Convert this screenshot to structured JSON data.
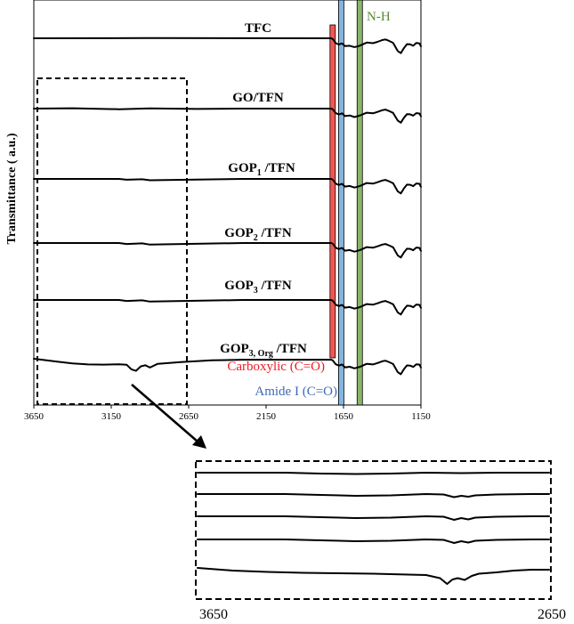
{
  "chart_data": [
    {
      "type": "line",
      "title": "",
      "xlabel": "",
      "ylabel": "Transmittance ( a.u.)",
      "xlim": [
        3650,
        1150
      ],
      "x_reversed": true,
      "x_ticks": [
        "3650",
        "3150",
        "2650",
        "2150",
        "1650",
        "1150"
      ],
      "grid": false,
      "series": [
        {
          "name": "TFC",
          "label_main": "TFC",
          "label_sub": "",
          "label_tail": "",
          "x": [
            3650,
            2900,
            1730,
            1720,
            1700,
            1680,
            1660,
            1640,
            1610,
            1580,
            1560,
            1540,
            1500,
            1460,
            1430,
            1400,
            1380,
            1360,
            1330,
            1300,
            1280,
            1260,
            1240,
            1220,
            1200,
            1180,
            1160,
            1150
          ],
          "y": [
            0,
            0.1,
            0,
            -0.3,
            -2.5,
            -3.2,
            -2.6,
            -4,
            -3.8,
            -4.5,
            -4.2,
            -3.6,
            -2.2,
            -2.5,
            -1.8,
            -0.9,
            -0.6,
            -1.2,
            -2.3,
            -6.5,
            -7.6,
            -5,
            -3,
            -3.1,
            -3.8,
            -2.4,
            -2.6,
            -4.1
          ]
        },
        {
          "name": "GO/TFN",
          "label_main": "GO/TFN",
          "label_sub": "",
          "label_tail": "",
          "x": [
            3650,
            3400,
            3100,
            2900,
            2600,
            2300,
            1730,
            1720,
            1700,
            1680,
            1660,
            1640,
            1610,
            1580,
            1560,
            1540,
            1500,
            1460,
            1430,
            1400,
            1380,
            1360,
            1330,
            1300,
            1280,
            1260,
            1240,
            1220,
            1200,
            1180,
            1160,
            1150
          ],
          "y": [
            0,
            0.2,
            -0.3,
            0.1,
            -0.2,
            0,
            0,
            -0.3,
            -2.3,
            -3,
            -2.4,
            -3.8,
            -3.5,
            -4.3,
            -3.9,
            -3.4,
            -2.1,
            -2.4,
            -1.7,
            -0.8,
            -0.5,
            -1.1,
            -2.2,
            -6.1,
            -7.2,
            -4.7,
            -2.8,
            -2.9,
            -3.6,
            -2.3,
            -2.5,
            -3.9
          ]
        },
        {
          "name": "GOP1/TFN",
          "label_main": "GOP",
          "label_sub": "1",
          "label_tail": " /TFN",
          "x": [
            3650,
            3300,
            3100,
            3050,
            2950,
            2900,
            2300,
            1730,
            1720,
            1700,
            1680,
            1660,
            1640,
            1610,
            1580,
            1560,
            1540,
            1500,
            1460,
            1430,
            1400,
            1380,
            1360,
            1330,
            1300,
            1280,
            1260,
            1240,
            1220,
            1200,
            1180,
            1160,
            1150
          ],
          "y": [
            0,
            0,
            0,
            -0.4,
            -0.2,
            -0.7,
            0,
            0,
            -0.3,
            -2.4,
            -3.1,
            -2.5,
            -3.9,
            -3.6,
            -4.4,
            -4,
            -3.5,
            -2.1,
            -2.4,
            -1.7,
            -0.8,
            -0.5,
            -1.1,
            -2.2,
            -6.3,
            -7.4,
            -4.8,
            -2.9,
            -3,
            -3.7,
            -2.3,
            -2.5,
            -4
          ]
        },
        {
          "name": "GOP2/TFN",
          "label_main": "GOP",
          "label_sub": "2",
          "label_tail": " /TFN",
          "x": [
            3650,
            3300,
            3100,
            3050,
            2950,
            2900,
            2300,
            1730,
            1720,
            1700,
            1680,
            1660,
            1640,
            1610,
            1580,
            1560,
            1540,
            1500,
            1460,
            1430,
            1400,
            1380,
            1360,
            1330,
            1300,
            1280,
            1260,
            1240,
            1220,
            1200,
            1180,
            1160,
            1150
          ],
          "y": [
            0,
            0,
            0,
            -0.5,
            -0.2,
            -0.8,
            0,
            0,
            -0.3,
            -2.4,
            -3.1,
            -2.5,
            -3.9,
            -3.6,
            -4.4,
            -4,
            -3.5,
            -2.1,
            -2.4,
            -1.7,
            -0.8,
            -0.5,
            -1.1,
            -2.2,
            -6.3,
            -7.4,
            -4.8,
            -2.9,
            -3,
            -3.7,
            -2.3,
            -2.5,
            -4
          ]
        },
        {
          "name": "GOP3/TFN",
          "label_main": "GOP",
          "label_sub": "3",
          "label_tail": " /TFN",
          "x": [
            3650,
            3300,
            3100,
            3050,
            2950,
            2900,
            2300,
            1730,
            1720,
            1700,
            1680,
            1660,
            1640,
            1610,
            1580,
            1560,
            1540,
            1500,
            1460,
            1430,
            1400,
            1380,
            1360,
            1330,
            1300,
            1280,
            1260,
            1240,
            1220,
            1200,
            1180,
            1160,
            1150
          ],
          "y": [
            0,
            0,
            0,
            -0.5,
            -0.2,
            -0.8,
            0,
            0,
            -0.3,
            -2.4,
            -3.1,
            -2.5,
            -3.9,
            -3.6,
            -4.4,
            -4,
            -3.5,
            -2.1,
            -2.4,
            -1.7,
            -0.8,
            -0.5,
            -1.1,
            -2.2,
            -6.3,
            -7.4,
            -4.8,
            -2.9,
            -3,
            -3.7,
            -2.3,
            -2.5,
            -4
          ]
        },
        {
          "name": "GOP3, Org/TFN",
          "label_main": "GOP",
          "label_sub": "3, Org",
          "label_tail": " /TFN",
          "x": [
            3650,
            3500,
            3400,
            3300,
            3200,
            3100,
            3050,
            3020,
            2990,
            2960,
            2930,
            2900,
            2850,
            2700,
            2500,
            2300,
            1730,
            1720,
            1700,
            1680,
            1660,
            1640,
            1610,
            1580,
            1560,
            1540,
            1500,
            1460,
            1430,
            1400,
            1380,
            1360,
            1330,
            1300,
            1280,
            1260,
            1240,
            1220,
            1200,
            1180,
            1160,
            1150
          ],
          "y": [
            0,
            -1.5,
            -2.4,
            -2.9,
            -3,
            -2.8,
            -3.1,
            -5.4,
            -6.2,
            -3.9,
            -3.3,
            -4.5,
            -2.6,
            -1.7,
            -0.8,
            -0.5,
            -0.5,
            -0.8,
            -2.8,
            -3.5,
            -2.9,
            -4.4,
            -4.1,
            -4.9,
            -4.5,
            -4,
            -2.6,
            -2.9,
            -2.2,
            -1.3,
            -1,
            -1.6,
            -2.7,
            -6.8,
            -7.9,
            -5.3,
            -3.4,
            -3.5,
            -4.2,
            -2.8,
            -3,
            -4.5
          ]
        }
      ],
      "bands": [
        {
          "label": "Carboxylic (C=O)",
          "color": "#ee1c25",
          "x": 1720
        },
        {
          "label": "Amide I (C=O)",
          "color": "#3e6ab3",
          "x": 1665
        },
        {
          "label": "N-H",
          "color": "#5a8a3a",
          "x": 1545
        }
      ],
      "colors": {
        "line": "#000000",
        "label_carboxylic": "#ee1c25",
        "label_amide": "#3e6ab3",
        "label_nh": "#5a8a3a",
        "band_red": "#ee3a35",
        "band_blue": "#6fa8dc",
        "band_green": "#76a84f"
      }
    },
    {
      "type": "line",
      "title": "",
      "xlabel": "",
      "ylabel": "",
      "xlim": [
        3650,
        2650
      ],
      "x_reversed": true,
      "x_ticks": [
        "3650",
        "2650"
      ],
      "grid": false,
      "series": [
        {
          "x": [
            3650,
            3400,
            3300,
            3200,
            3100,
            3000,
            2900,
            2800,
            2700,
            2650
          ],
          "y": [
            0,
            0,
            -0.2,
            -0.3,
            -0.2,
            0,
            -0.1,
            0,
            0,
            0
          ]
        },
        {
          "x": [
            3650,
            3400,
            3300,
            3200,
            3100,
            3000,
            2950,
            2920,
            2900,
            2880,
            2860,
            2800,
            2700,
            2650
          ],
          "y": [
            0,
            0,
            -0.2,
            -0.4,
            -0.3,
            0,
            -0.1,
            -0.7,
            -0.4,
            -0.6,
            -0.3,
            -0.1,
            0,
            0
          ]
        },
        {
          "x": [
            3650,
            3400,
            3300,
            3200,
            3100,
            3000,
            2950,
            2920,
            2900,
            2880,
            2860,
            2800,
            2700,
            2650
          ],
          "y": [
            0,
            0,
            -0.2,
            -0.4,
            -0.3,
            0,
            -0.1,
            -0.8,
            -0.4,
            -0.7,
            -0.3,
            -0.1,
            0,
            0
          ]
        },
        {
          "x": [
            3650,
            3400,
            3300,
            3200,
            3100,
            3000,
            2950,
            2920,
            2900,
            2880,
            2860,
            2800,
            2700,
            2650
          ],
          "y": [
            0,
            0,
            -0.2,
            -0.4,
            -0.3,
            0,
            -0.1,
            -0.8,
            -0.4,
            -0.7,
            -0.3,
            -0.1,
            0,
            0
          ]
        },
        {
          "x": [
            3650,
            3550,
            3450,
            3350,
            3250,
            3150,
            3050,
            3000,
            2960,
            2940,
            2925,
            2910,
            2890,
            2870,
            2850,
            2800,
            2750,
            2700,
            2650
          ],
          "y": [
            0,
            -0.6,
            -0.9,
            -1.1,
            -1.2,
            -1.3,
            -1.5,
            -1.6,
            -2.3,
            -3.6,
            -2.6,
            -2.3,
            -2.7,
            -1.8,
            -1.3,
            -1,
            -0.6,
            -0.4,
            -0.4
          ]
        }
      ]
    }
  ]
}
